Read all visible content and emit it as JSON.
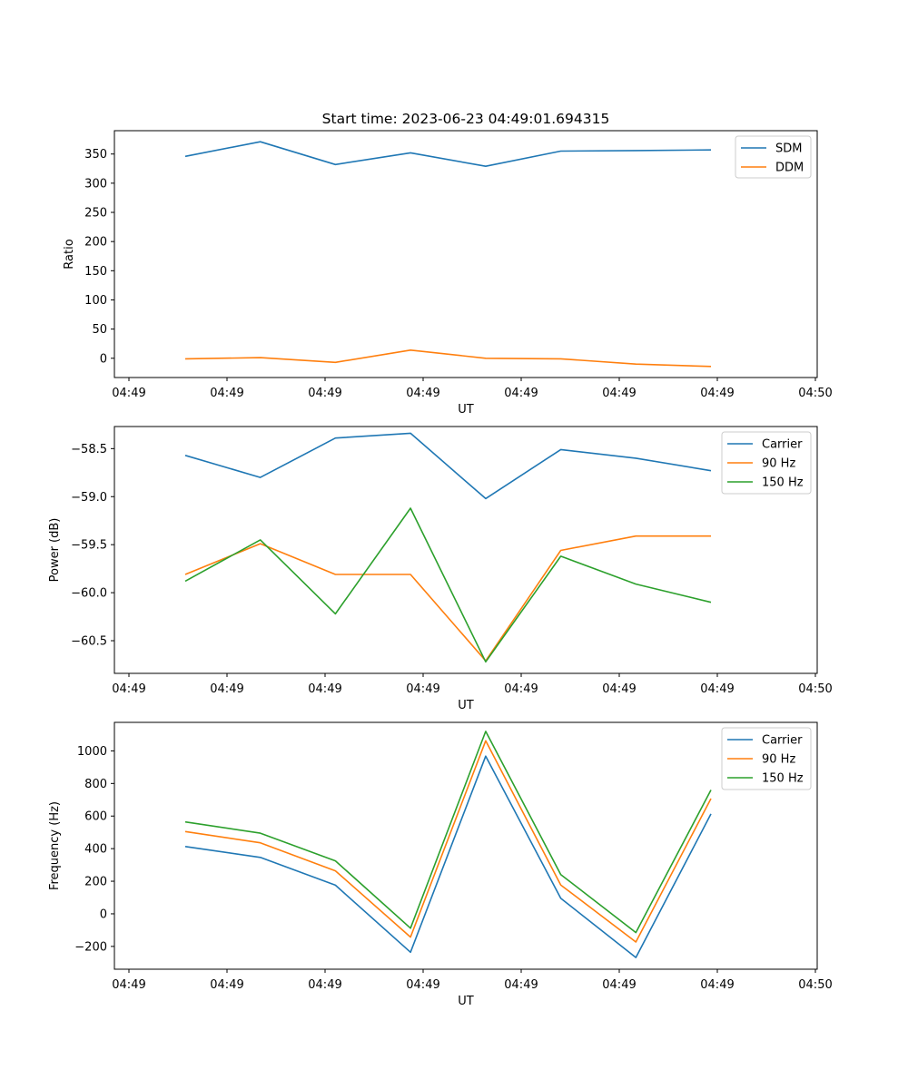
{
  "chart_data": [
    {
      "type": "line",
      "title": "Start time: 2023-06-23 04:49:01.694315",
      "xlabel": "UT",
      "ylabel": "Ratio",
      "x_tick_labels": [
        "04:49",
        "04:49",
        "04:49",
        "04:49",
        "04:49",
        "04:49",
        "04:49",
        "04:50"
      ],
      "yticks": [
        0,
        50,
        100,
        150,
        200,
        250,
        300,
        350
      ],
      "ylim": [
        -33,
        390
      ],
      "legend_position": "upper right",
      "series": [
        {
          "name": "SDM",
          "color": "#1f77b4",
          "values": [
            346,
            371,
            332,
            352,
            329,
            355,
            356,
            357
          ]
        },
        {
          "name": "DDM",
          "color": "#ff7f0e",
          "values": [
            -1,
            1,
            -7,
            14,
            0,
            -1,
            -10,
            -14
          ]
        }
      ]
    },
    {
      "type": "line",
      "title": "",
      "xlabel": "UT",
      "ylabel": "Power (dB)",
      "x_tick_labels": [
        "04:49",
        "04:49",
        "04:49",
        "04:49",
        "04:49",
        "04:49",
        "04:49",
        "04:50"
      ],
      "yticks": [
        -58.5,
        -59.0,
        -59.5,
        -60.0,
        -60.5
      ],
      "ytick_labels": [
        "−58.5",
        "−59.0",
        "−59.5",
        "−60.0",
        "−60.5"
      ],
      "ylim": [
        -60.84,
        -58.27
      ],
      "legend_position": "upper right",
      "series": [
        {
          "name": "Carrier",
          "color": "#1f77b4",
          "values": [
            -58.57,
            -58.8,
            -58.39,
            -58.34,
            -59.02,
            -58.51,
            -58.6,
            -58.73
          ]
        },
        {
          "name": "90 Hz",
          "color": "#ff7f0e",
          "values": [
            -59.81,
            -59.49,
            -59.81,
            -59.81,
            -60.71,
            -59.56,
            -59.41,
            -59.41
          ]
        },
        {
          "name": "150 Hz",
          "color": "#2ca02c",
          "values": [
            -59.88,
            -59.45,
            -60.22,
            -59.12,
            -60.72,
            -59.62,
            -59.91,
            -60.1
          ]
        }
      ]
    },
    {
      "type": "line",
      "title": "",
      "xlabel": "UT",
      "ylabel": "Frequency (Hz)",
      "x_tick_labels": [
        "04:49",
        "04:49",
        "04:49",
        "04:49",
        "04:49",
        "04:49",
        "04:49",
        "04:50"
      ],
      "yticks": [
        -200,
        0,
        200,
        400,
        600,
        800,
        1000
      ],
      "ytick_labels": [
        "−200",
        "0",
        "200",
        "400",
        "600",
        "800",
        "1000"
      ],
      "ylim": [
        -340,
        1175
      ],
      "legend_position": "upper right",
      "series": [
        {
          "name": "Carrier",
          "color": "#1f77b4",
          "values": [
            413,
            346,
            176,
            -236,
            968,
            95,
            -268,
            613
          ]
        },
        {
          "name": "90 Hz",
          "color": "#ff7f0e",
          "values": [
            505,
            436,
            264,
            -143,
            1062,
            177,
            -173,
            707
          ]
        },
        {
          "name": "150 Hz",
          "color": "#2ca02c",
          "values": [
            564,
            495,
            325,
            -88,
            1120,
            241,
            -115,
            760
          ]
        }
      ]
    }
  ]
}
